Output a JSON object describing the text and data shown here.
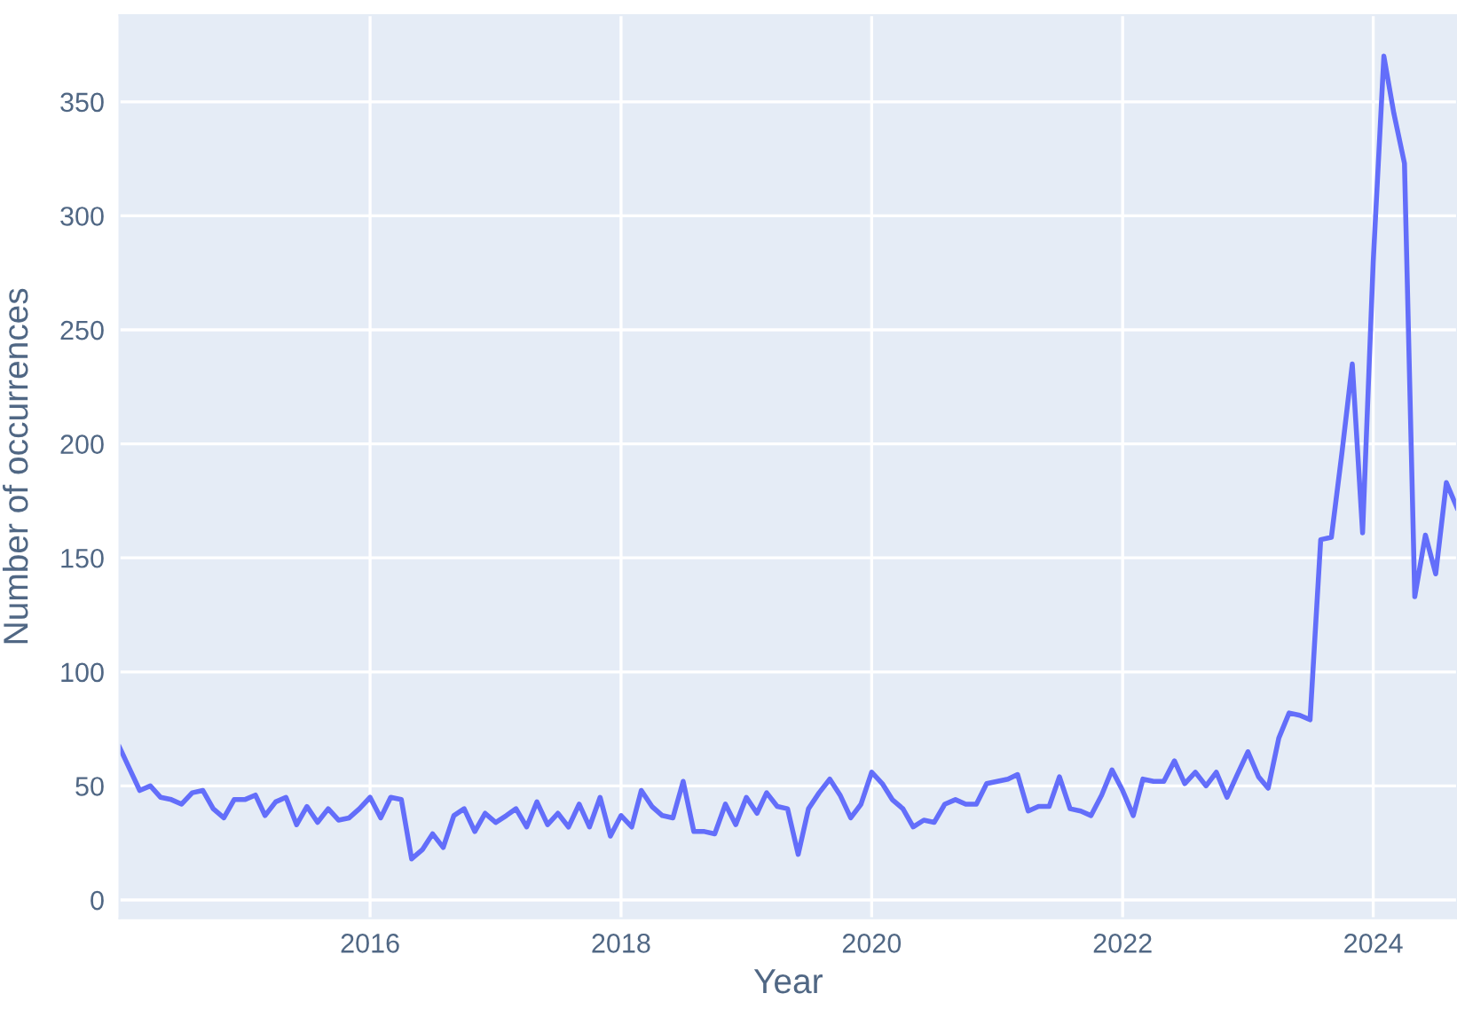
{
  "chart_data": {
    "type": "line",
    "xlabel": "Year",
    "ylabel": "Number of occurrences",
    "x": [
      "2014-01",
      "2014-02",
      "2014-03",
      "2014-04",
      "2014-05",
      "2014-06",
      "2014-07",
      "2014-08",
      "2014-09",
      "2014-10",
      "2014-11",
      "2014-12",
      "2015-01",
      "2015-02",
      "2015-03",
      "2015-04",
      "2015-05",
      "2015-06",
      "2015-07",
      "2015-08",
      "2015-09",
      "2015-10",
      "2015-11",
      "2015-12",
      "2016-01",
      "2016-02",
      "2016-03",
      "2016-04",
      "2016-05",
      "2016-06",
      "2016-07",
      "2016-08",
      "2016-09",
      "2016-10",
      "2016-11",
      "2016-12",
      "2017-01",
      "2017-02",
      "2017-03",
      "2017-04",
      "2017-05",
      "2017-06",
      "2017-07",
      "2017-08",
      "2017-09",
      "2017-10",
      "2017-11",
      "2017-12",
      "2018-01",
      "2018-02",
      "2018-03",
      "2018-04",
      "2018-05",
      "2018-06",
      "2018-07",
      "2018-08",
      "2018-09",
      "2018-10",
      "2018-11",
      "2018-12",
      "2019-01",
      "2019-02",
      "2019-03",
      "2019-04",
      "2019-05",
      "2019-06",
      "2019-07",
      "2019-08",
      "2019-09",
      "2019-10",
      "2019-11",
      "2019-12",
      "2020-01",
      "2020-02",
      "2020-03",
      "2020-04",
      "2020-05",
      "2020-06",
      "2020-07",
      "2020-08",
      "2020-09",
      "2020-10",
      "2020-11",
      "2020-12",
      "2021-01",
      "2021-02",
      "2021-03",
      "2021-04",
      "2021-05",
      "2021-06",
      "2021-07",
      "2021-08",
      "2021-09",
      "2021-10",
      "2021-11",
      "2021-12",
      "2022-01",
      "2022-02",
      "2022-03",
      "2022-04",
      "2022-05",
      "2022-06",
      "2022-07",
      "2022-08",
      "2022-09",
      "2022-10",
      "2022-11",
      "2022-12",
      "2023-01",
      "2023-02",
      "2023-03",
      "2023-04",
      "2023-05",
      "2023-06",
      "2023-07",
      "2023-08",
      "2023-09",
      "2023-10",
      "2023-11",
      "2023-12",
      "2024-01",
      "2024-02",
      "2024-03",
      "2024-04",
      "2024-05",
      "2024-06",
      "2024-07",
      "2024-08",
      "2024-09"
    ],
    "series": [
      {
        "color": "#636efa",
        "values": [
          67,
          57,
          48,
          50,
          45,
          44,
          42,
          47,
          48,
          40,
          36,
          44,
          44,
          46,
          37,
          43,
          45,
          33,
          41,
          34,
          40,
          35,
          36,
          40,
          45,
          36,
          45,
          44,
          18,
          22,
          29,
          23,
          37,
          40,
          30,
          38,
          34,
          37,
          40,
          32,
          43,
          33,
          38,
          32,
          42,
          32,
          45,
          28,
          37,
          32,
          48,
          41,
          37,
          36,
          52,
          30,
          30,
          29,
          42,
          33,
          45,
          38,
          47,
          41,
          40,
          20,
          40,
          47,
          53,
          46,
          36,
          42,
          56,
          51,
          44,
          40,
          32,
          35,
          34,
          42,
          44,
          42,
          42,
          51,
          52,
          53,
          55,
          39,
          41,
          41,
          54,
          40,
          39,
          37,
          46,
          57,
          48,
          37,
          53,
          52,
          52,
          61,
          51,
          56,
          50,
          56,
          45,
          55,
          65,
          54,
          49,
          71,
          82,
          81,
          79,
          158,
          159,
          195,
          235,
          161,
          280,
          370,
          345,
          323,
          133,
          160,
          143,
          183,
          172
        ]
      }
    ],
    "xlim": [
      "2014-01",
      "2024-09"
    ],
    "xticks": [
      {
        "value": "2016-01",
        "label": "2016"
      },
      {
        "value": "2018-01",
        "label": "2018"
      },
      {
        "value": "2020-01",
        "label": "2020"
      },
      {
        "value": "2022-01",
        "label": "2022"
      },
      {
        "value": "2024-01",
        "label": "2024"
      }
    ],
    "ylim": [
      -8,
      388
    ],
    "yticks": [
      0,
      50,
      100,
      150,
      200,
      250,
      300,
      350
    ],
    "grid": true,
    "legend": false
  }
}
